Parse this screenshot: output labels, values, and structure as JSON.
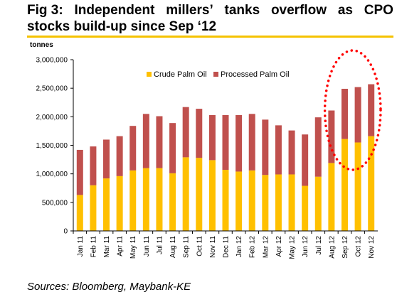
{
  "figure": {
    "title_line1": [
      "Fig 3:",
      "Independent",
      "millers’",
      "tanks",
      "overflow",
      "as",
      "CPO"
    ],
    "title_line2": "stocks build-up since Sep ‘12",
    "source": "Sources: Bloomberg, Maybank-KE"
  },
  "chart_data": {
    "type": "bar",
    "stacked": true,
    "ylabel": "tonnes",
    "ylim": [
      0,
      3000000
    ],
    "yticks": [
      "0",
      "500,000",
      "1,000,000",
      "1,500,000",
      "2,000,000",
      "2,500,000",
      "3,000,000"
    ],
    "categories": [
      "Jan 11",
      "Feb 11",
      "Mar 11",
      "Apr 11",
      "May 11",
      "Jun 11",
      "Jul 11",
      "Aug 11",
      "Sep 11",
      "Oct 11",
      "Nov 11",
      "Dec 11",
      "Jan 12",
      "Feb 12",
      "Mar 12",
      "Apr 12",
      "May 12",
      "Jun 12",
      "Jul 12",
      "Aug 12",
      "Sep 12",
      "Oct 12",
      "Nov 12"
    ],
    "series": [
      {
        "name": "Crude Palm Oil",
        "color": "#ffc000",
        "values": [
          630000,
          800000,
          920000,
          960000,
          1060000,
          1100000,
          1100000,
          1010000,
          1290000,
          1280000,
          1240000,
          1070000,
          1040000,
          1060000,
          980000,
          990000,
          990000,
          790000,
          950000,
          1190000,
          1610000,
          1550000,
          1660000
        ]
      },
      {
        "name": "Processed Palm Oil",
        "color": "#c0504d",
        "values": [
          790000,
          680000,
          680000,
          700000,
          780000,
          950000,
          910000,
          880000,
          880000,
          860000,
          790000,
          960000,
          990000,
          990000,
          970000,
          860000,
          770000,
          900000,
          1040000,
          920000,
          880000,
          970000,
          910000
        ]
      }
    ],
    "legend_position": "top-center",
    "gridlines": false,
    "annotation": {
      "shape": "dotted-ellipse",
      "color": "#ff0000",
      "highlights": [
        "Aug 12",
        "Sep 12",
        "Oct 12",
        "Nov 12"
      ]
    }
  }
}
